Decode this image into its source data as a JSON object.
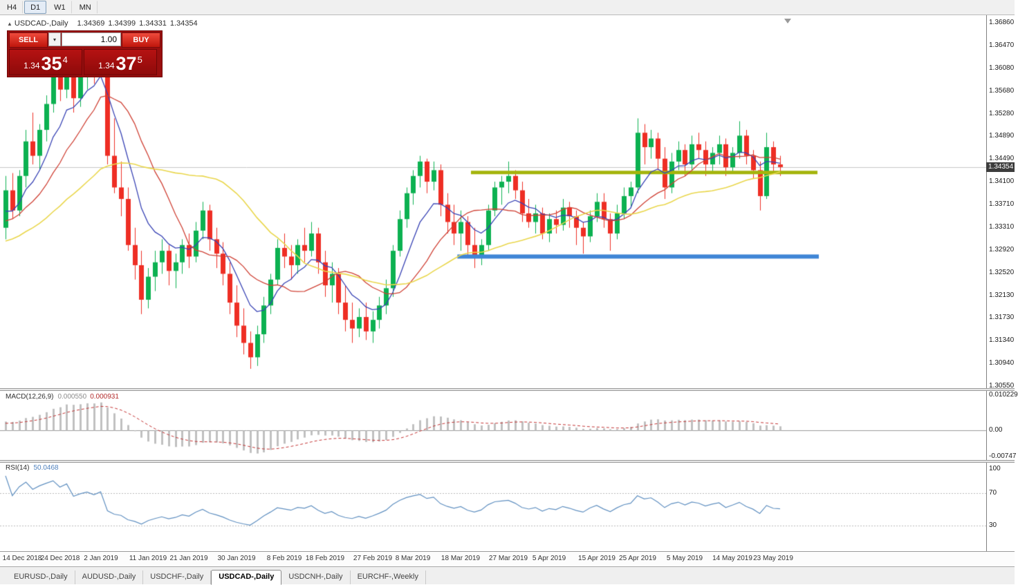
{
  "icons": {
    "collapse": "▲",
    "dropdown": "▾",
    "shift_marker": "triangle-down"
  },
  "toolbar": {
    "timeframes": [
      {
        "label": "H4",
        "active": false
      },
      {
        "label": "D1",
        "active": true
      },
      {
        "label": "W1",
        "active": false
      },
      {
        "label": "MN",
        "active": false
      }
    ]
  },
  "header": {
    "symbol": "USDCAD-,Daily",
    "open": "1.34369",
    "high": "1.34399",
    "low": "1.34331",
    "close": "1.34354"
  },
  "trade_panel": {
    "sell_label": "SELL",
    "buy_label": "BUY",
    "volume_value": "1.00",
    "sell_price": {
      "prefix": "1.34",
      "big": "35",
      "sup": "4"
    },
    "buy_price": {
      "prefix": "1.34",
      "big": "37",
      "sup": "5"
    }
  },
  "price_axis_labels": [
    "1.36860",
    "1.36470",
    "1.36080",
    "1.35680",
    "1.35280",
    "1.34890",
    "1.34490",
    "1.34100",
    "1.33710",
    "1.33310",
    "1.32920",
    "1.32520",
    "1.32130",
    "1.31730",
    "1.31340",
    "1.30940",
    "1.30550"
  ],
  "current_price_badge": "1.34354",
  "macd_panel": {
    "name": "MACD(12,26,9)",
    "value_main": "0.000550",
    "value_signal": "0.000931",
    "axis_labels": [
      "0.010229",
      "0.00",
      "-0.00747"
    ],
    "axis_max": 0.010229,
    "axis_min": -0.00747
  },
  "rsi_panel": {
    "name": "RSI(14)",
    "value": "50.0468",
    "axis_labels": [
      "100",
      "70",
      "30"
    ],
    "levels": [
      70,
      30
    ]
  },
  "date_axis": {
    "labels": [
      "14 Dec 2018",
      "24 Dec 2018",
      "2 Jan 2019",
      "11 Jan 2019",
      "21 Jan 2019",
      "30 Jan 2019",
      "8 Feb 2019",
      "18 Feb 2019",
      "27 Feb 2019",
      "8 Mar 2019",
      "18 Mar 2019",
      "27 Mar 2019",
      "5 Apr 2019",
      "15 Apr 2019",
      "25 Apr 2019",
      "5 May 2019",
      "14 May 2019",
      "23 May 2019"
    ],
    "tick_indices": [
      1,
      8,
      14,
      21,
      27,
      34,
      41,
      47,
      54,
      60,
      67,
      74,
      80,
      87,
      93,
      100,
      107,
      113
    ]
  },
  "tabs": [
    {
      "label": "EURUSD-,Daily",
      "active": false
    },
    {
      "label": "AUDUSD-,Daily",
      "active": false
    },
    {
      "label": "USDCHF-,Daily",
      "active": false
    },
    {
      "label": "USDCAD-,Daily",
      "active": true
    },
    {
      "label": "USDCNH-,Daily",
      "active": false
    },
    {
      "label": "EURCHF-,Weekly",
      "active": false
    }
  ],
  "chart_data": {
    "type": "candlestick",
    "symbol": "USDCAD",
    "timeframe": "Daily",
    "ylim": [
      1.3055,
      1.3686
    ],
    "up_color": "#0cb151",
    "down_color": "#ee2e24",
    "bid_line": {
      "price": 1.34354,
      "color": "#c6c6c6"
    },
    "ohlc": [
      [
        1.333,
        1.342,
        1.331,
        1.3395
      ],
      [
        1.3395,
        1.3425,
        1.3345,
        1.336
      ],
      [
        1.336,
        1.343,
        1.335,
        1.342
      ],
      [
        1.342,
        1.35,
        1.34,
        1.348
      ],
      [
        1.348,
        1.353,
        1.344,
        1.3455
      ],
      [
        1.3455,
        1.351,
        1.343,
        1.35
      ],
      [
        1.35,
        1.356,
        1.348,
        1.3545
      ],
      [
        1.3545,
        1.3655,
        1.353,
        1.36
      ],
      [
        1.36,
        1.365,
        1.355,
        1.357
      ],
      [
        1.357,
        1.366,
        1.3555,
        1.3635
      ],
      [
        1.3635,
        1.3645,
        1.353,
        1.3555
      ],
      [
        1.3555,
        1.361,
        1.354,
        1.3595
      ],
      [
        1.3595,
        1.364,
        1.357,
        1.3625
      ],
      [
        1.3625,
        1.364,
        1.358,
        1.3605
      ],
      [
        1.3605,
        1.3664,
        1.3595,
        1.3655
      ],
      [
        1.3655,
        1.366,
        1.344,
        1.3455
      ],
      [
        1.3455,
        1.352,
        1.339,
        1.34
      ],
      [
        1.34,
        1.3445,
        1.335,
        1.338
      ],
      [
        1.338,
        1.34,
        1.329,
        1.33
      ],
      [
        1.33,
        1.333,
        1.324,
        1.3265
      ],
      [
        1.3265,
        1.329,
        1.318,
        1.3205
      ],
      [
        1.3205,
        1.326,
        1.319,
        1.3245
      ],
      [
        1.3245,
        1.329,
        1.322,
        1.327
      ],
      [
        1.327,
        1.331,
        1.325,
        1.329
      ],
      [
        1.329,
        1.33,
        1.323,
        1.3255
      ],
      [
        1.3255,
        1.3285,
        1.3225,
        1.327
      ],
      [
        1.327,
        1.331,
        1.325,
        1.33
      ],
      [
        1.33,
        1.332,
        1.326,
        1.328
      ],
      [
        1.328,
        1.334,
        1.327,
        1.3325
      ],
      [
        1.3325,
        1.3375,
        1.331,
        1.336
      ],
      [
        1.336,
        1.337,
        1.329,
        1.331
      ],
      [
        1.331,
        1.333,
        1.326,
        1.3285
      ],
      [
        1.3285,
        1.3305,
        1.323,
        1.325
      ],
      [
        1.325,
        1.327,
        1.318,
        1.32
      ],
      [
        1.32,
        1.323,
        1.314,
        1.316
      ],
      [
        1.316,
        1.319,
        1.311,
        1.313
      ],
      [
        1.313,
        1.315,
        1.3085,
        1.3105
      ],
      [
        1.3105,
        1.316,
        1.309,
        1.3145
      ],
      [
        1.3145,
        1.321,
        1.313,
        1.3195
      ],
      [
        1.3195,
        1.325,
        1.318,
        1.324
      ],
      [
        1.324,
        1.331,
        1.323,
        1.3295
      ],
      [
        1.3295,
        1.332,
        1.326,
        1.328
      ],
      [
        1.328,
        1.33,
        1.324,
        1.3265
      ],
      [
        1.3265,
        1.331,
        1.325,
        1.33
      ],
      [
        1.33,
        1.333,
        1.327,
        1.329
      ],
      [
        1.329,
        1.334,
        1.328,
        1.332
      ],
      [
        1.332,
        1.333,
        1.325,
        1.327
      ],
      [
        1.327,
        1.329,
        1.321,
        1.323
      ],
      [
        1.323,
        1.327,
        1.32,
        1.325
      ],
      [
        1.325,
        1.326,
        1.318,
        1.32
      ],
      [
        1.32,
        1.323,
        1.315,
        1.317
      ],
      [
        1.317,
        1.32,
        1.313,
        1.3155
      ],
      [
        1.3155,
        1.319,
        1.314,
        1.3175
      ],
      [
        1.3175,
        1.32,
        1.3135,
        1.315
      ],
      [
        1.315,
        1.3185,
        1.313,
        1.317
      ],
      [
        1.317,
        1.321,
        1.3155,
        1.3195
      ],
      [
        1.3195,
        1.324,
        1.318,
        1.3225
      ],
      [
        1.3225,
        1.33,
        1.321,
        1.329
      ],
      [
        1.329,
        1.336,
        1.328,
        1.3345
      ],
      [
        1.3345,
        1.34,
        1.333,
        1.339
      ],
      [
        1.339,
        1.343,
        1.337,
        1.342
      ],
      [
        1.342,
        1.3455,
        1.34,
        1.3445
      ],
      [
        1.3445,
        1.345,
        1.339,
        1.341
      ],
      [
        1.341,
        1.3445,
        1.3395,
        1.343
      ],
      [
        1.343,
        1.344,
        1.335,
        1.337
      ],
      [
        1.337,
        1.339,
        1.332,
        1.334
      ],
      [
        1.334,
        1.337,
        1.33,
        1.332
      ],
      [
        1.332,
        1.336,
        1.329,
        1.334
      ],
      [
        1.334,
        1.335,
        1.328,
        1.33
      ],
      [
        1.33,
        1.333,
        1.326,
        1.328
      ],
      [
        1.328,
        1.331,
        1.3265,
        1.33
      ],
      [
        1.33,
        1.337,
        1.329,
        1.336
      ],
      [
        1.336,
        1.341,
        1.335,
        1.34
      ],
      [
        1.34,
        1.342,
        1.337,
        1.341
      ],
      [
        1.341,
        1.3445,
        1.339,
        1.342
      ],
      [
        1.342,
        1.343,
        1.338,
        1.3395
      ],
      [
        1.3395,
        1.341,
        1.334,
        1.3355
      ],
      [
        1.3355,
        1.338,
        1.333,
        1.334
      ],
      [
        1.334,
        1.337,
        1.332,
        1.3355
      ],
      [
        1.3355,
        1.3365,
        1.331,
        1.332
      ],
      [
        1.332,
        1.3355,
        1.3305,
        1.3345
      ],
      [
        1.3345,
        1.336,
        1.332,
        1.3335
      ],
      [
        1.3335,
        1.338,
        1.3325,
        1.3365
      ],
      [
        1.3365,
        1.3375,
        1.333,
        1.335
      ],
      [
        1.335,
        1.336,
        1.33,
        1.333
      ],
      [
        1.333,
        1.334,
        1.3285,
        1.3315
      ],
      [
        1.3315,
        1.336,
        1.3305,
        1.335
      ],
      [
        1.335,
        1.339,
        1.334,
        1.3375
      ],
      [
        1.3375,
        1.339,
        1.333,
        1.3345
      ],
      [
        1.3345,
        1.3355,
        1.329,
        1.332
      ],
      [
        1.332,
        1.337,
        1.331,
        1.3355
      ],
      [
        1.3355,
        1.34,
        1.3345,
        1.3385
      ],
      [
        1.3385,
        1.341,
        1.3365,
        1.34
      ],
      [
        1.34,
        1.352,
        1.339,
        1.3495
      ],
      [
        1.3495,
        1.351,
        1.344,
        1.347
      ],
      [
        1.347,
        1.35,
        1.345,
        1.3485
      ],
      [
        1.3485,
        1.3495,
        1.343,
        1.345
      ],
      [
        1.345,
        1.347,
        1.338,
        1.34
      ],
      [
        1.34,
        1.346,
        1.339,
        1.3445
      ],
      [
        1.3445,
        1.348,
        1.343,
        1.3465
      ],
      [
        1.3465,
        1.3475,
        1.342,
        1.344
      ],
      [
        1.344,
        1.349,
        1.343,
        1.3475
      ],
      [
        1.3475,
        1.3495,
        1.345,
        1.3465
      ],
      [
        1.3465,
        1.348,
        1.342,
        1.344
      ],
      [
        1.344,
        1.347,
        1.3425,
        1.346
      ],
      [
        1.346,
        1.349,
        1.344,
        1.3475
      ],
      [
        1.3475,
        1.3485,
        1.342,
        1.3435
      ],
      [
        1.3435,
        1.347,
        1.3425,
        1.346
      ],
      [
        1.346,
        1.3515,
        1.345,
        1.349
      ],
      [
        1.349,
        1.35,
        1.344,
        1.3455
      ],
      [
        1.3455,
        1.3465,
        1.3415,
        1.343
      ],
      [
        1.343,
        1.3445,
        1.336,
        1.3385
      ],
      [
        1.3385,
        1.3495,
        1.338,
        1.347
      ],
      [
        1.347,
        1.348,
        1.3425,
        1.344
      ],
      [
        1.344,
        1.3455,
        1.342,
        1.34354
      ]
    ],
    "warmup_closes": [
      1.325,
      1.3252,
      1.3258,
      1.3255,
      1.3262,
      1.3268,
      1.3265,
      1.3272,
      1.3278,
      1.3282,
      1.328,
      1.3288,
      1.3295,
      1.3292,
      1.33,
      1.3305,
      1.3302,
      1.331,
      1.3315,
      1.332,
      1.3318,
      1.3325,
      1.3332,
      1.333,
      1.3338,
      1.3345,
      1.3342,
      1.335,
      1.336,
      1.3375
    ],
    "overlays": [
      {
        "name": "ma-fast",
        "method": "ema",
        "period": 8,
        "color": "#3742b4",
        "width": 1.3
      },
      {
        "name": "ma-mid",
        "method": "sma",
        "period": 13,
        "color": "#cf4034",
        "width": 1.3
      },
      {
        "name": "ma-slow",
        "method": "sma",
        "period": 30,
        "color": "#e9d64b",
        "width": 1.6
      }
    ],
    "hlines": [
      {
        "name": "resistance-line",
        "price": 1.3426,
        "color": "#a4b40c",
        "width": 5,
        "start_index": 68.5,
        "end_index": 119.5
      },
      {
        "name": "support-line",
        "price": 1.328,
        "color": "#3f86d6",
        "width": 6,
        "start_index": 66.5,
        "end_index": 119.7
      }
    ],
    "indicators": [
      {
        "type": "macd",
        "fast": 12,
        "slow": 26,
        "signal": 9,
        "hist_color": "#c0c0c0",
        "signal_color": "#c23030"
      },
      {
        "type": "rsi",
        "period": 14,
        "color": "#5f8fc0"
      }
    ]
  }
}
